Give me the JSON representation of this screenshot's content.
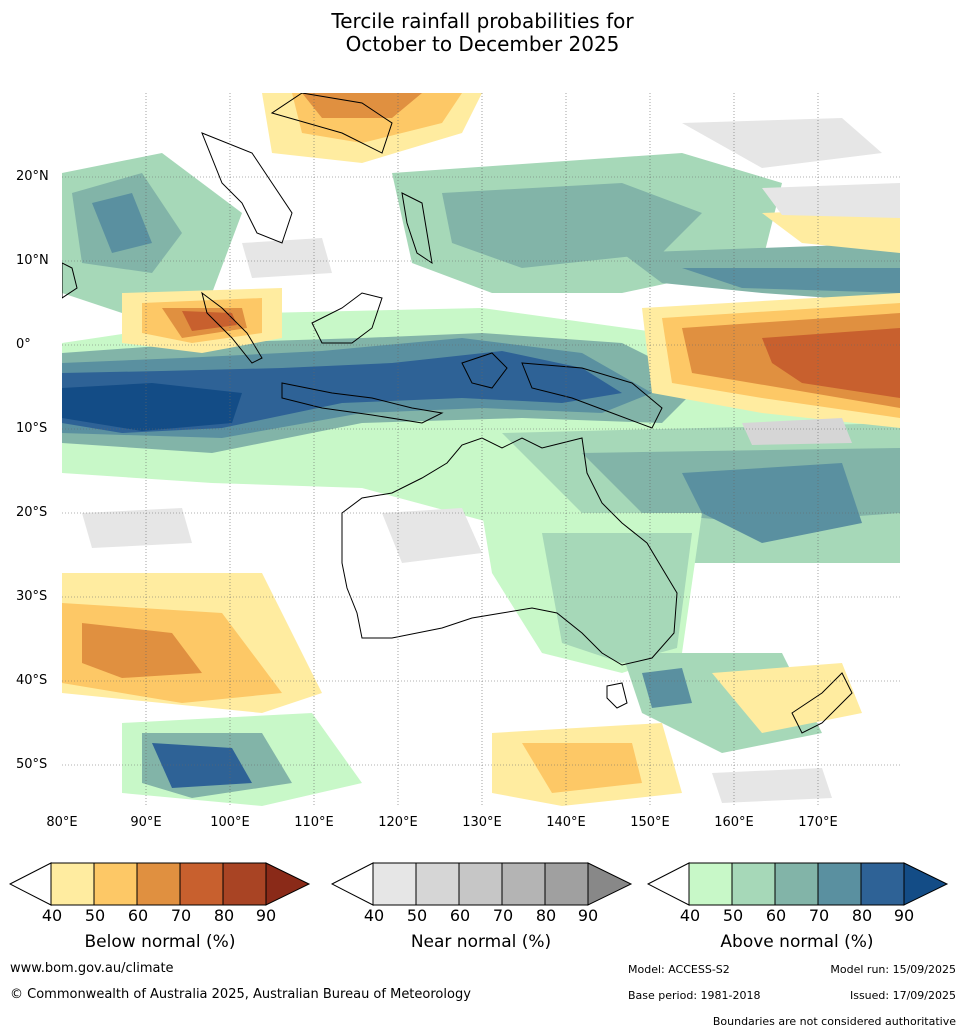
{
  "title_line1": "Tercile rainfall probabilities for",
  "title_line2": "October to December 2025",
  "map": {
    "lat_labels": [
      "20°N",
      "10°N",
      "0°",
      "10°S",
      "20°S",
      "30°S",
      "40°S",
      "50°S"
    ],
    "lon_labels": [
      "80°E",
      "90°E",
      "100°E",
      "110°E",
      "120°E",
      "130°E",
      "140°E",
      "150°E",
      "160°E",
      "170°E"
    ]
  },
  "colorbars": {
    "below": {
      "title": "Below normal (%)",
      "ticks": [
        "40",
        "50",
        "60",
        "70",
        "80",
        "90"
      ],
      "colors": [
        "#ffeca0",
        "#fdc866",
        "#e09040",
        "#c8602e",
        "#a94424",
        "#8a2a18"
      ]
    },
    "near": {
      "title": "Near normal (%)",
      "ticks": [
        "40",
        "50",
        "60",
        "70",
        "80",
        "90"
      ],
      "colors": [
        "#e6e6e6",
        "#d6d6d6",
        "#c6c6c6",
        "#b4b4b4",
        "#a0a0a0",
        "#888888"
      ]
    },
    "above": {
      "title": "Above normal (%)",
      "ticks": [
        "40",
        "50",
        "60",
        "70",
        "80",
        "90"
      ],
      "colors": [
        "#c8f8c8",
        "#a6d8b8",
        "#82b4a8",
        "#5a90a0",
        "#2e6296",
        "#134c86"
      ]
    }
  },
  "footer": {
    "website": "www.bom.gov.au/climate",
    "copyright": "© Commonwealth of Australia 2025, Australian Bureau of Meteorology",
    "model": "Model: ACCESS-S2",
    "model_run": "Model run: 15/09/2025",
    "base_period": "Base period: 1981-2018",
    "issued": "Issued: 17/09/2025",
    "disclaimer": "Boundaries are not considered authoritative"
  }
}
